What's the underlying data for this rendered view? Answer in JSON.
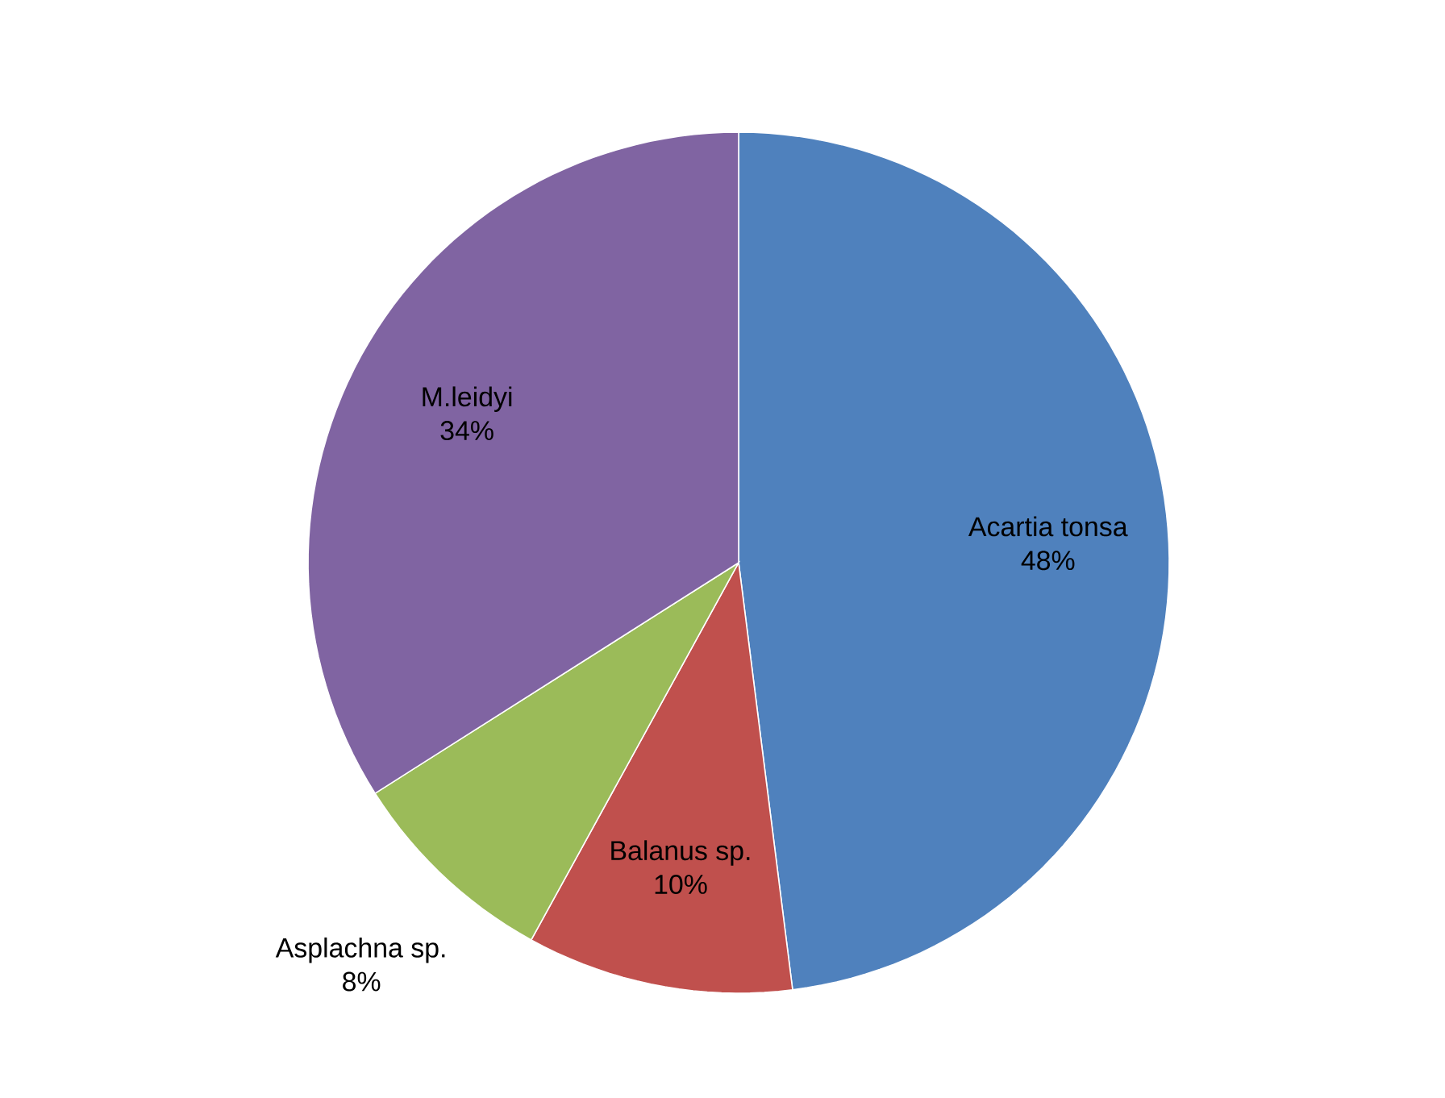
{
  "chart_data": {
    "type": "pie",
    "categories": [
      "Acartia tonsa",
      "Balanus sp.",
      "Asplachna sp.",
      "M.leidyi"
    ],
    "values": [
      48,
      10,
      8,
      34
    ],
    "colors": [
      "#4f81bd",
      "#c0504d",
      "#9bbb59",
      "#8064a2"
    ],
    "value_labels": [
      "48%",
      "10%",
      "8%",
      "34%"
    ]
  }
}
